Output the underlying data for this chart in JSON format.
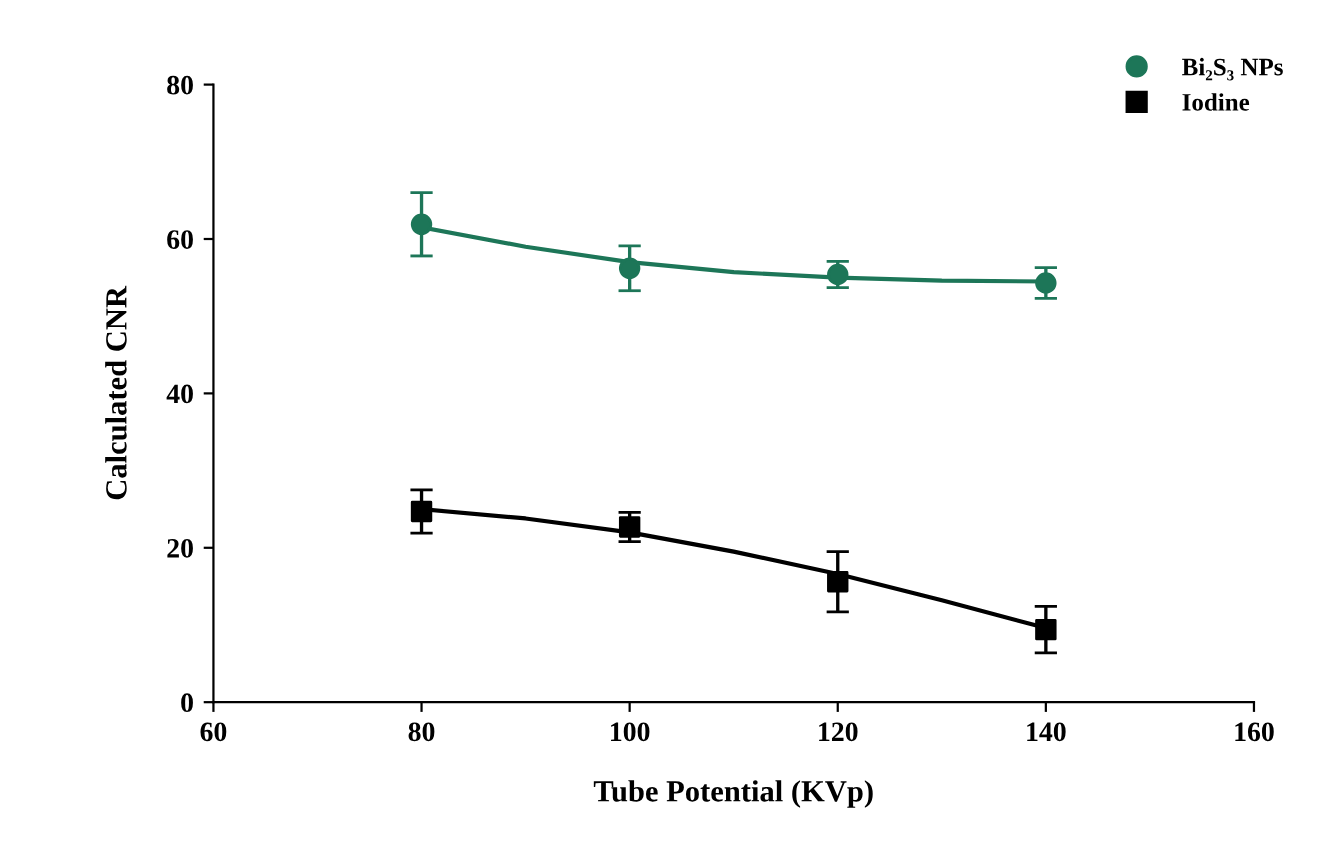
{
  "chart_data": {
    "type": "line",
    "xlabel": "Tube Potential (KVp)",
    "ylabel": "Calculated CNR",
    "xlim": [
      60,
      160
    ],
    "xticks": [
      60,
      80,
      100,
      120,
      140,
      160
    ],
    "ylim": [
      0,
      80
    ],
    "yticks": [
      0,
      20,
      40,
      60,
      80
    ],
    "grid": false,
    "legend": "top right",
    "series": [
      {
        "name": "Bi₂S₃ NPs",
        "type": "scatter",
        "marker": "circle",
        "color": "#1d7658",
        "x": [
          80,
          100,
          120,
          140
        ],
        "values": [
          61.9,
          56.2,
          55.4,
          54.3
        ],
        "errors": [
          4.1,
          2.9,
          1.7,
          2.0
        ]
      },
      {
        "name": "Iodine",
        "type": "scatter",
        "marker": "square",
        "color": "#000000",
        "x": [
          80,
          100,
          120,
          140
        ],
        "values": [
          24.7,
          22.7,
          15.6,
          9.4
        ],
        "errors": [
          2.8,
          1.9,
          3.9,
          3.0
        ]
      },
      {
        "color": "#1d7658",
        "x": [
          80,
          90,
          100,
          110,
          120,
          130,
          140
        ],
        "values": [
          61.5,
          59.0,
          57.0,
          55.7,
          55.0,
          54.6,
          54.5
        ]
      },
      {
        "color": "#000000",
        "x": [
          80,
          90,
          100,
          110,
          120,
          130,
          140
        ],
        "values": [
          25.0,
          23.8,
          22.0,
          19.5,
          16.6,
          13.2,
          9.6
        ]
      }
    ]
  }
}
